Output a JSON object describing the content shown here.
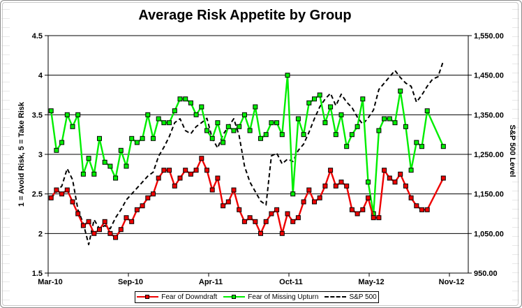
{
  "chart_data": {
    "type": "line",
    "title": "Average Risk Appetite by Group",
    "legend_position": "bottom",
    "grid": "horizontal",
    "y_left": {
      "title": "1 = Avoid Risk, 5 = Take Risk",
      "min": 1.5,
      "max": 4.5,
      "step": 0.5,
      "tick_labels": [
        "4.5",
        "4",
        "3.5",
        "3",
        "2.5",
        "2",
        "1.5"
      ]
    },
    "y_right": {
      "title": "S&P 500 Level",
      "min": 950,
      "max": 1550,
      "step": 100,
      "tick_labels": [
        "1,550.00",
        "1,450.00",
        "1,350.00",
        "1,250.00",
        "1,150.00",
        "1,050.00",
        "950.00"
      ]
    },
    "x_axis": {
      "tick_labels": [
        "Mar-10",
        "Sep-10",
        "Apr-11",
        "Oct-11",
        "May-12",
        "Nov-12"
      ],
      "points_per_tick": 15,
      "n_points": 74
    },
    "series": [
      {
        "name": "S&P 500",
        "axis": "right",
        "color": "#000000",
        "line_style": "dashed",
        "marker": "none",
        "values": [
          1140,
          1155,
          1170,
          1214,
          1186,
          1110,
          1075,
          1022,
          1085,
          1062,
          1070,
          1062,
          1090,
          1110,
          1135,
          1150,
          1165,
          1180,
          1195,
          1205,
          1245,
          1268,
          1295,
          1330,
          1340,
          1310,
          1302,
          1320,
          1330,
          1341,
          1290,
          1266,
          1300,
          1320,
          1340,
          1297,
          1220,
          1180,
          1156,
          1132,
          1122,
          1246,
          1253,
          1226,
          1238,
          1232,
          1260,
          1276,
          1306,
          1340,
          1370,
          1390,
          1404,
          1373,
          1402,
          1382,
          1368,
          1344,
          1326,
          1342,
          1362,
          1414,
          1430,
          1446,
          1462,
          1444,
          1430,
          1422,
          1382,
          1400,
          1422,
          1440,
          1446,
          1486
        ]
      },
      {
        "name": "Fear of Missing Upturn",
        "axis": "left",
        "color": "#00EE00",
        "line_style": "solid",
        "marker": "square",
        "values": [
          3.55,
          3.05,
          3.15,
          3.5,
          3.35,
          3.5,
          2.75,
          2.95,
          2.75,
          3.2,
          2.9,
          2.85,
          2.7,
          3.05,
          2.85,
          3.2,
          3.15,
          3.2,
          3.5,
          3.2,
          3.45,
          3.4,
          3.4,
          3.55,
          3.7,
          3.7,
          3.65,
          3.5,
          3.6,
          3.3,
          3.2,
          3.4,
          3.15,
          3.35,
          3.3,
          3.35,
          3.5,
          3.3,
          3.6,
          3.2,
          3.25,
          3.4,
          3.4,
          3.25,
          4.0,
          2.5,
          3.45,
          3.25,
          3.65,
          3.7,
          3.75,
          3.4,
          3.6,
          3.25,
          3.5,
          3.1,
          3.25,
          3.35,
          3.7,
          2.65,
          2.25,
          3.3,
          3.45,
          3.45,
          3.4,
          3.8,
          3.35,
          2.8,
          3.15,
          3.1,
          3.55,
          null,
          null,
          3.1
        ]
      },
      {
        "name": "Fear of Downdraft",
        "axis": "left",
        "color": "#EE0000",
        "line_style": "solid",
        "marker": "square",
        "values": [
          2.45,
          2.55,
          2.5,
          2.55,
          2.4,
          2.25,
          2.1,
          2.15,
          2.0,
          2.05,
          2.15,
          2.0,
          1.95,
          2.05,
          2.2,
          2.15,
          2.3,
          2.35,
          2.45,
          2.5,
          2.7,
          2.8,
          2.8,
          2.6,
          2.7,
          2.8,
          2.75,
          2.8,
          2.95,
          2.8,
          2.55,
          2.7,
          2.35,
          2.4,
          2.55,
          2.3,
          2.15,
          2.2,
          2.15,
          2.0,
          2.15,
          2.25,
          2.3,
          2.0,
          2.25,
          2.15,
          2.2,
          2.4,
          2.55,
          2.4,
          2.45,
          2.6,
          2.8,
          2.6,
          2.65,
          2.6,
          2.3,
          2.25,
          2.3,
          2.45,
          2.2,
          2.2,
          2.8,
          2.7,
          2.65,
          2.75,
          2.6,
          2.45,
          2.35,
          2.3,
          2.3,
          null,
          null,
          2.7
        ]
      }
    ],
    "legend_order": [
      "Fear of Downdraft",
      "Fear of Missing Upturn",
      "S&P 500"
    ]
  }
}
